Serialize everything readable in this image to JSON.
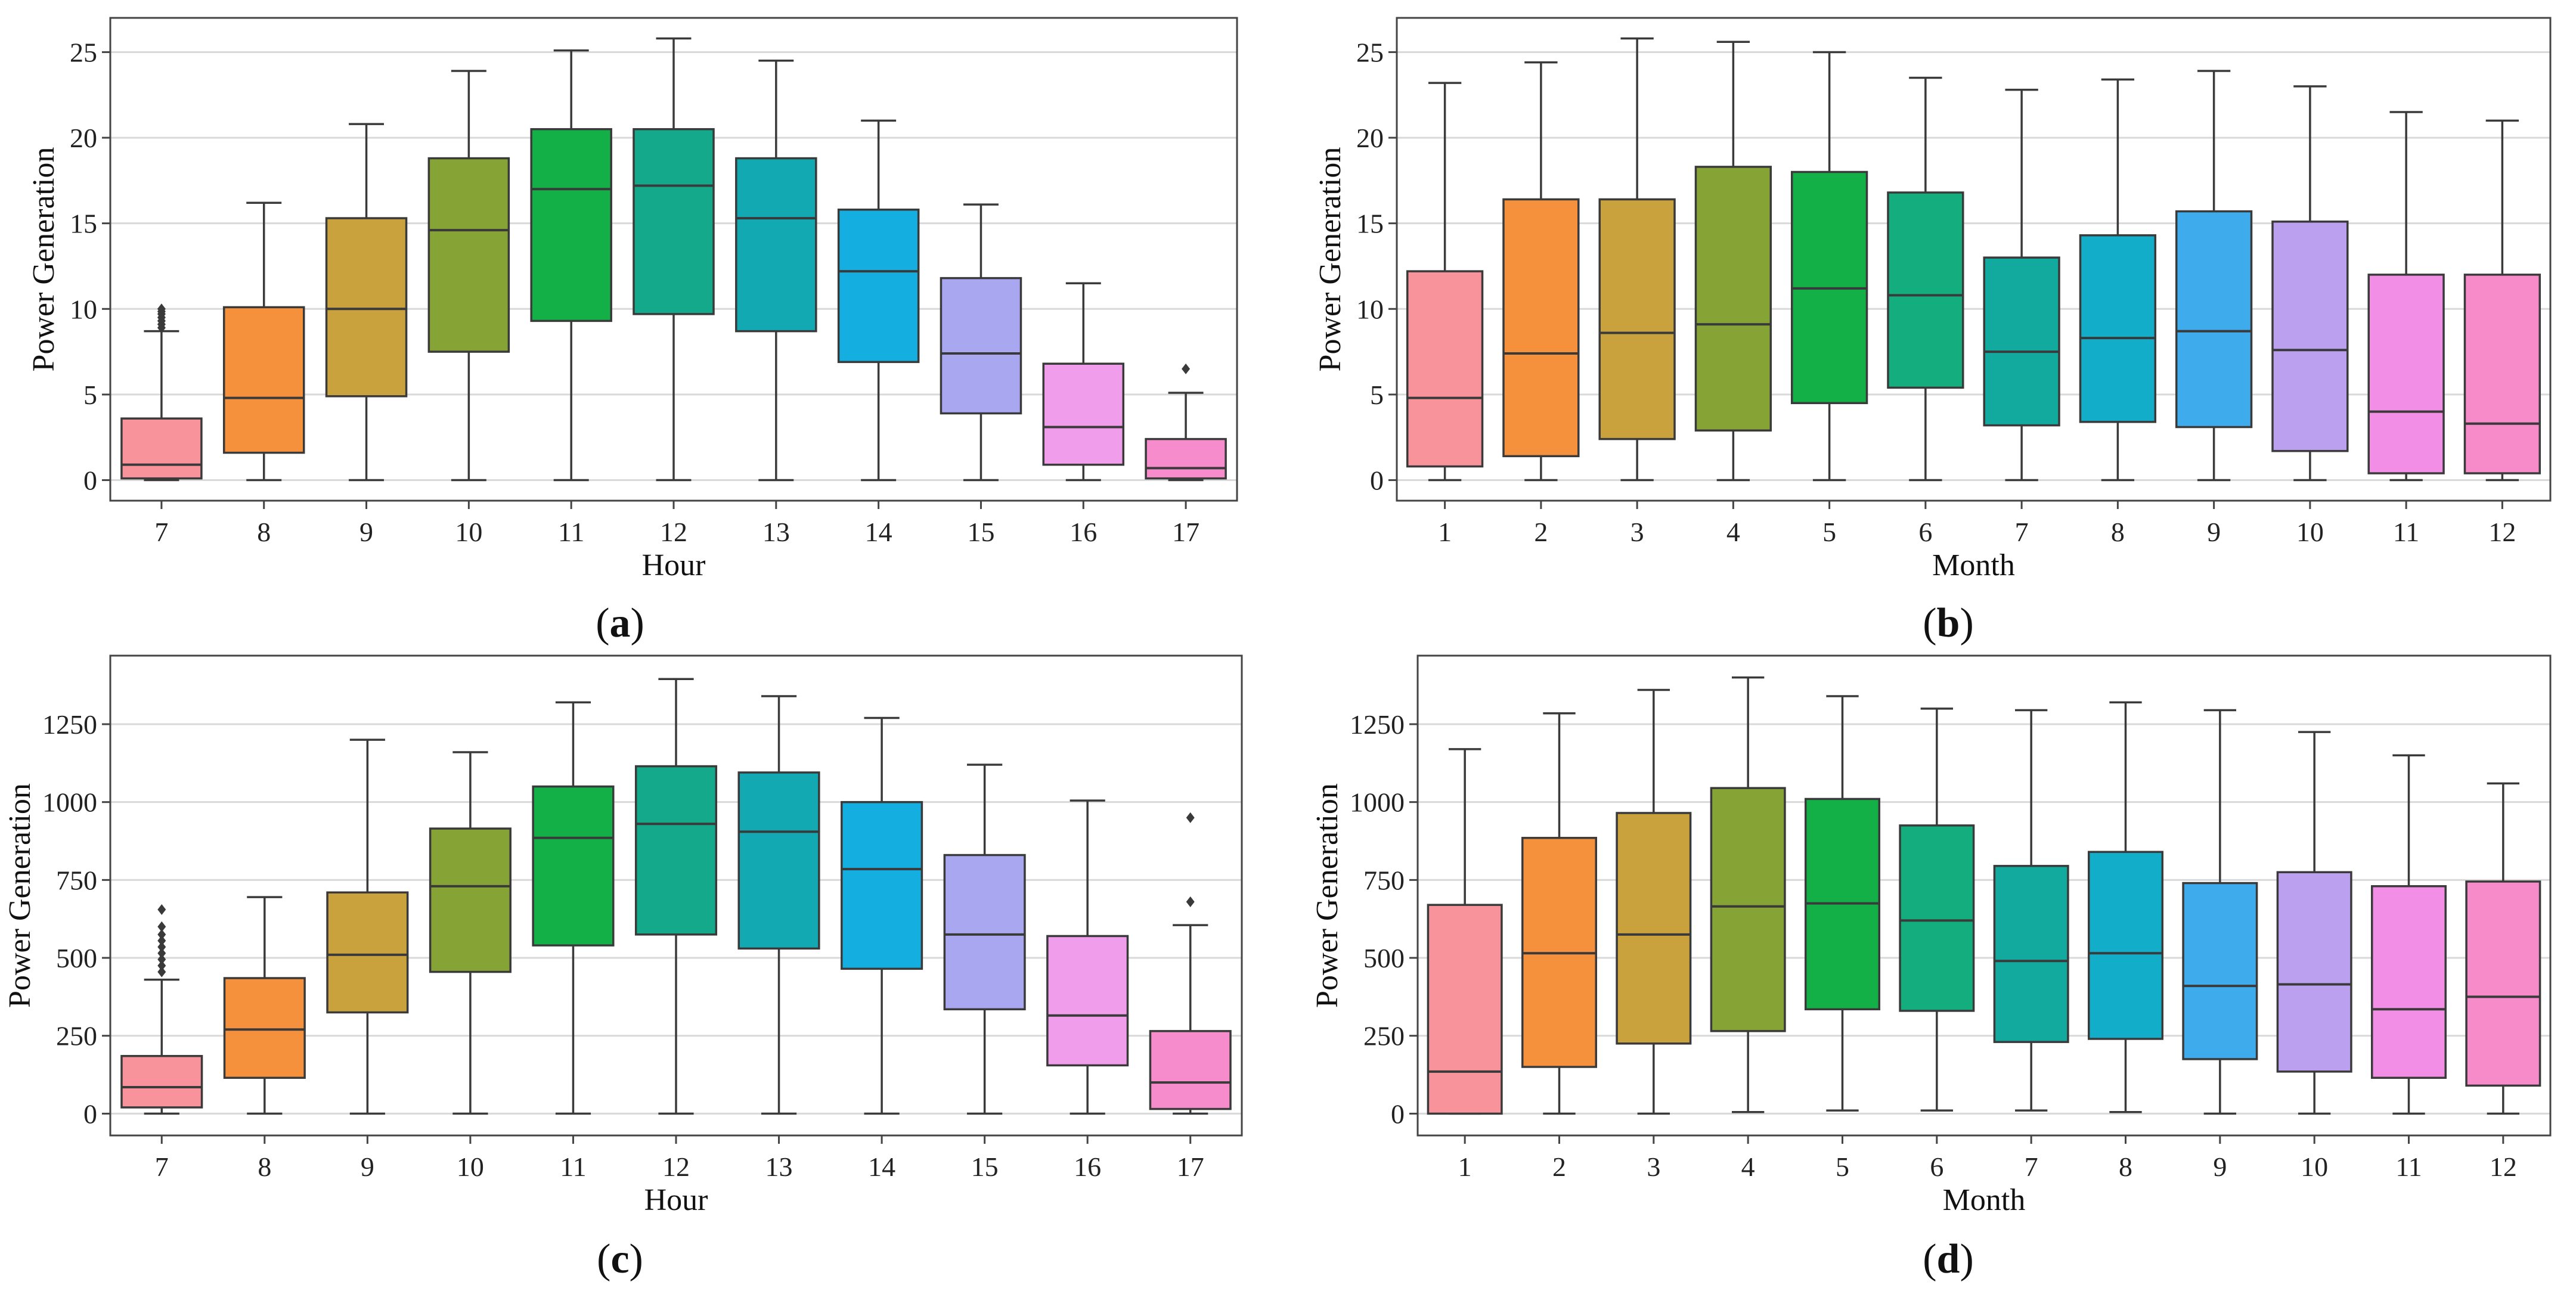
{
  "palette_hour": [
    "#F8939C",
    "#F5913D",
    "#C9A23E",
    "#86A336",
    "#12B047",
    "#14A98A",
    "#12A9B2",
    "#14AEE0",
    "#A9A7F0",
    "#F09DEB",
    "#F78CCC"
  ],
  "palette_month": [
    "#F8939C",
    "#F5913D",
    "#C9A23E",
    "#86A336",
    "#12B047",
    "#14AD7E",
    "#12A99F",
    "#12AEC9",
    "#3EACEC",
    "#BBA0F0",
    "#F28EE6",
    "#F78AC9"
  ],
  "chart_data": [
    {
      "type": "boxplot",
      "caption_letter": "a",
      "xlabel": "Hour",
      "ylabel": "Power Generation",
      "ylim": [
        -1.2,
        27
      ],
      "yticks": [
        0,
        5,
        10,
        15,
        20,
        25
      ],
      "ytick_labels": [
        "0",
        "5",
        "10",
        "15",
        "20",
        "25"
      ],
      "categories": [
        "7",
        "8",
        "9",
        "10",
        "11",
        "12",
        "13",
        "14",
        "15",
        "16",
        "17"
      ],
      "boxes": [
        {
          "whislo": 0,
          "q1": 0.1,
          "med": 0.9,
          "q3": 3.6,
          "whishi": 8.7,
          "fliers": [
            8.9,
            9.1,
            9.3,
            9.5,
            9.7,
            9.85,
            10.0
          ]
        },
        {
          "whislo": 0,
          "q1": 1.6,
          "med": 4.8,
          "q3": 10.1,
          "whishi": 16.2,
          "fliers": []
        },
        {
          "whislo": 0,
          "q1": 4.9,
          "med": 10.0,
          "q3": 15.3,
          "whishi": 20.8,
          "fliers": []
        },
        {
          "whislo": 0,
          "q1": 7.5,
          "med": 14.6,
          "q3": 18.8,
          "whishi": 23.9,
          "fliers": []
        },
        {
          "whislo": 0,
          "q1": 9.3,
          "med": 17.0,
          "q3": 20.5,
          "whishi": 25.1,
          "fliers": []
        },
        {
          "whislo": 0,
          "q1": 9.7,
          "med": 17.2,
          "q3": 20.5,
          "whishi": 25.8,
          "fliers": []
        },
        {
          "whislo": 0,
          "q1": 8.7,
          "med": 15.3,
          "q3": 18.8,
          "whishi": 24.5,
          "fliers": []
        },
        {
          "whislo": 0,
          "q1": 6.9,
          "med": 12.2,
          "q3": 15.8,
          "whishi": 21.0,
          "fliers": []
        },
        {
          "whislo": 0,
          "q1": 3.9,
          "med": 7.4,
          "q3": 11.8,
          "whishi": 16.1,
          "fliers": []
        },
        {
          "whislo": 0,
          "q1": 0.9,
          "med": 3.1,
          "q3": 6.8,
          "whishi": 11.5,
          "fliers": []
        },
        {
          "whislo": 0,
          "q1": 0.1,
          "med": 0.7,
          "q3": 2.4,
          "whishi": 5.1,
          "fliers": [
            6.5
          ]
        }
      ]
    },
    {
      "type": "boxplot",
      "caption_letter": "b",
      "xlabel": "Month",
      "ylabel": "Power Generation",
      "ylim": [
        -1.2,
        27
      ],
      "yticks": [
        0,
        5,
        10,
        15,
        20,
        25
      ],
      "ytick_labels": [
        "0",
        "5",
        "10",
        "15",
        "20",
        "25"
      ],
      "categories": [
        "1",
        "2",
        "3",
        "4",
        "5",
        "6",
        "7",
        "8",
        "9",
        "10",
        "11",
        "12"
      ],
      "boxes": [
        {
          "whislo": 0,
          "q1": 0.8,
          "med": 4.8,
          "q3": 12.2,
          "whishi": 23.2,
          "fliers": []
        },
        {
          "whislo": 0,
          "q1": 1.4,
          "med": 7.4,
          "q3": 16.4,
          "whishi": 24.4,
          "fliers": []
        },
        {
          "whislo": 0,
          "q1": 2.4,
          "med": 8.6,
          "q3": 16.4,
          "whishi": 25.8,
          "fliers": []
        },
        {
          "whislo": 0,
          "q1": 2.9,
          "med": 9.1,
          "q3": 18.3,
          "whishi": 25.6,
          "fliers": []
        },
        {
          "whislo": 0,
          "q1": 4.5,
          "med": 11.2,
          "q3": 18.0,
          "whishi": 25.0,
          "fliers": []
        },
        {
          "whislo": 0,
          "q1": 5.4,
          "med": 10.8,
          "q3": 16.8,
          "whishi": 23.5,
          "fliers": []
        },
        {
          "whislo": 0,
          "q1": 3.2,
          "med": 7.5,
          "q3": 13.0,
          "whishi": 22.8,
          "fliers": []
        },
        {
          "whislo": 0,
          "q1": 3.4,
          "med": 8.3,
          "q3": 14.3,
          "whishi": 23.4,
          "fliers": []
        },
        {
          "whislo": 0,
          "q1": 3.1,
          "med": 8.7,
          "q3": 15.7,
          "whishi": 23.9,
          "fliers": []
        },
        {
          "whislo": 0,
          "q1": 1.7,
          "med": 7.6,
          "q3": 15.1,
          "whishi": 23.0,
          "fliers": []
        },
        {
          "whislo": 0,
          "q1": 0.4,
          "med": 4.0,
          "q3": 12.0,
          "whishi": 21.5,
          "fliers": []
        },
        {
          "whislo": 0,
          "q1": 0.4,
          "med": 3.3,
          "q3": 12.0,
          "whishi": 21.0,
          "fliers": []
        }
      ]
    },
    {
      "type": "boxplot",
      "caption_letter": "c",
      "xlabel": "Hour",
      "ylabel": "Power Generation",
      "ylim": [
        -70,
        1470
      ],
      "yticks": [
        0,
        250,
        500,
        750,
        1000,
        1250
      ],
      "ytick_labels": [
        "0",
        "250",
        "500",
        "750",
        "1000",
        "1250"
      ],
      "categories": [
        "7",
        "8",
        "9",
        "10",
        "11",
        "12",
        "13",
        "14",
        "15",
        "16",
        "17"
      ],
      "boxes": [
        {
          "whislo": 0,
          "q1": 20,
          "med": 85,
          "q3": 185,
          "whishi": 430,
          "fliers": [
            455,
            475,
            495,
            515,
            535,
            555,
            575,
            600,
            655
          ]
        },
        {
          "whislo": 0,
          "q1": 115,
          "med": 270,
          "q3": 435,
          "whishi": 695,
          "fliers": []
        },
        {
          "whislo": 0,
          "q1": 325,
          "med": 510,
          "q3": 710,
          "whishi": 1200,
          "fliers": []
        },
        {
          "whislo": 0,
          "q1": 455,
          "med": 730,
          "q3": 915,
          "whishi": 1160,
          "fliers": []
        },
        {
          "whislo": 0,
          "q1": 540,
          "med": 885,
          "q3": 1050,
          "whishi": 1320,
          "fliers": []
        },
        {
          "whislo": 0,
          "q1": 575,
          "med": 930,
          "q3": 1115,
          "whishi": 1395,
          "fliers": []
        },
        {
          "whislo": 0,
          "q1": 530,
          "med": 905,
          "q3": 1095,
          "whishi": 1340,
          "fliers": []
        },
        {
          "whislo": 0,
          "q1": 465,
          "med": 785,
          "q3": 1000,
          "whishi": 1270,
          "fliers": []
        },
        {
          "whislo": 0,
          "q1": 335,
          "med": 575,
          "q3": 830,
          "whishi": 1120,
          "fliers": []
        },
        {
          "whislo": 0,
          "q1": 155,
          "med": 315,
          "q3": 570,
          "whishi": 1005,
          "fliers": []
        },
        {
          "whislo": 0,
          "q1": 15,
          "med": 100,
          "q3": 265,
          "whishi": 605,
          "fliers": [
            680,
            950
          ]
        }
      ]
    },
    {
      "type": "boxplot",
      "caption_letter": "d",
      "xlabel": "Month",
      "ylabel": "Power Generation",
      "ylim": [
        -70,
        1470
      ],
      "yticks": [
        0,
        250,
        500,
        750,
        1000,
        1250
      ],
      "ytick_labels": [
        "0",
        "250",
        "500",
        "750",
        "1000",
        "1250"
      ],
      "categories": [
        "1",
        "2",
        "3",
        "4",
        "5",
        "6",
        "7",
        "8",
        "9",
        "10",
        "11",
        "12"
      ],
      "boxes": [
        {
          "whislo": 0,
          "q1": 0,
          "med": 135,
          "q3": 670,
          "whishi": 1170,
          "fliers": []
        },
        {
          "whislo": 0,
          "q1": 150,
          "med": 515,
          "q3": 885,
          "whishi": 1285,
          "fliers": []
        },
        {
          "whislo": 0,
          "q1": 225,
          "med": 575,
          "q3": 965,
          "whishi": 1360,
          "fliers": []
        },
        {
          "whislo": 5,
          "q1": 265,
          "med": 665,
          "q3": 1045,
          "whishi": 1400,
          "fliers": []
        },
        {
          "whislo": 10,
          "q1": 335,
          "med": 675,
          "q3": 1010,
          "whishi": 1340,
          "fliers": []
        },
        {
          "whislo": 10,
          "q1": 330,
          "med": 620,
          "q3": 925,
          "whishi": 1300,
          "fliers": []
        },
        {
          "whislo": 10,
          "q1": 230,
          "med": 490,
          "q3": 795,
          "whishi": 1295,
          "fliers": []
        },
        {
          "whislo": 5,
          "q1": 240,
          "med": 515,
          "q3": 840,
          "whishi": 1320,
          "fliers": []
        },
        {
          "whislo": 0,
          "q1": 175,
          "med": 410,
          "q3": 740,
          "whishi": 1295,
          "fliers": []
        },
        {
          "whislo": 0,
          "q1": 135,
          "med": 415,
          "q3": 775,
          "whishi": 1225,
          "fliers": []
        },
        {
          "whislo": 0,
          "q1": 115,
          "med": 335,
          "q3": 730,
          "whishi": 1150,
          "fliers": []
        },
        {
          "whislo": 0,
          "q1": 90,
          "med": 375,
          "q3": 745,
          "whishi": 1060,
          "fliers": []
        }
      ]
    }
  ]
}
